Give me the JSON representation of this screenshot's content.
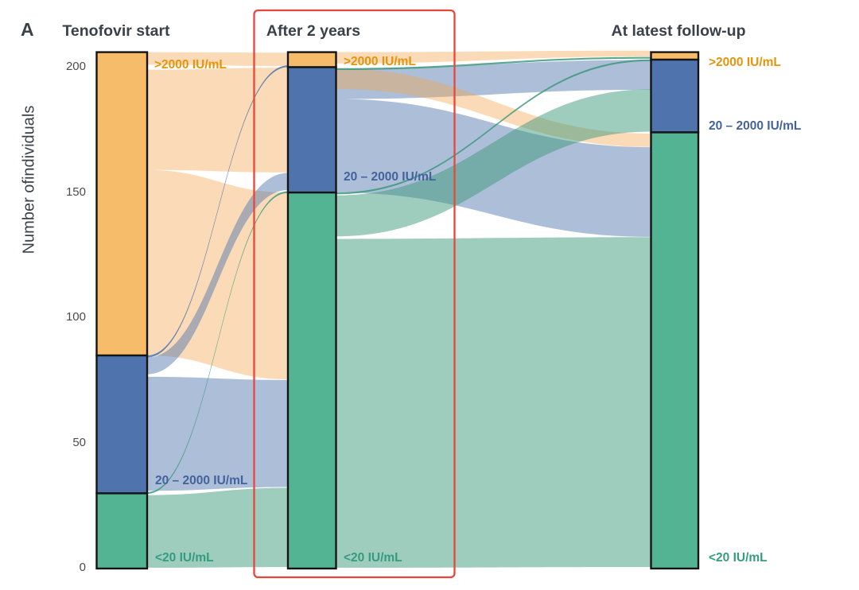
{
  "panel_label": "A",
  "y_axis": {
    "title": "Number ofindividuals",
    "ticks": [
      {
        "label": "200",
        "value": 200
      },
      {
        "label": "150",
        "value": 150
      },
      {
        "label": "100",
        "value": 100
      },
      {
        "label": "50",
        "value": 50
      },
      {
        "label": "0",
        "value": 0
      }
    ]
  },
  "columns": [
    {
      "id": "start",
      "header": "Tenofovir start",
      "labels": {
        "high": ">2000 IU/mL",
        "mid": "20 – 2000 IU/mL",
        "low": "<20 IU/mL"
      }
    },
    {
      "id": "after2y",
      "header": "After 2 years",
      "labels": {
        "high": ">2000 IU/mL",
        "mid": "20 – 2000 IU/mL",
        "low": "<20 IU/mL"
      }
    },
    {
      "id": "latest",
      "header": "At latest follow-up",
      "labels": {
        "high": ">2000 IU/mL",
        "mid": "20 – 2000 IU/mL",
        "low": "<20 IU/mL"
      }
    }
  ],
  "highlight": {
    "column": "After 2 years"
  },
  "colors": {
    "bar_high": "#f7bc69",
    "bar_mid": "#4f74ad",
    "bar_low": "#52b492",
    "ribbon_orange": "#f5a64b",
    "ribbon_blue": "#4f74ad",
    "ribbon_green": "#3d9a7c",
    "label_high": "#e6940c",
    "label_mid": "#44639c",
    "label_low": "#359c7d",
    "heading_text": "#3b4149",
    "tick_text": "#4c4c4c",
    "bar_outline": "#141414",
    "highlight_box": "#e8463c"
  },
  "chart_data": {
    "type": "alluvial",
    "total_individuals": 206,
    "y_axis": {
      "label": "Number ofindividuals",
      "range": [
        0,
        206
      ],
      "ticks": [
        0,
        50,
        100,
        150,
        200
      ]
    },
    "category_order_top_to_bottom": [
      ">2000 IU/mL",
      "20 – 2000 IU/mL",
      "<20 IU/mL"
    ],
    "axes": [
      {
        "label": "Tenofovir start",
        "strata": [
          {
            "name": ">2000 IU/mL",
            "value": 121
          },
          {
            "name": "20 – 2000 IU/mL",
            "value": 55
          },
          {
            "name": "<20 IU/mL",
            "value": 30
          }
        ]
      },
      {
        "label": "After 2 years",
        "strata": [
          {
            "name": ">2000 IU/mL",
            "value": 6
          },
          {
            "name": "20 – 2000 IU/mL",
            "value": 50
          },
          {
            "name": "<20 IU/mL",
            "value": 150
          }
        ]
      },
      {
        "label": "At latest follow-up",
        "strata": [
          {
            "name": ">2000 IU/mL",
            "value": 3
          },
          {
            "name": "20 – 2000 IU/mL",
            "value": 29
          },
          {
            "name": "<20 IU/mL",
            "value": 174
          }
        ]
      }
    ],
    "flows": [
      {
        "gap": 0,
        "from": ">2000 IU/mL",
        "to": ">2000 IU/mL",
        "value": 5,
        "src": [
          201,
          206
        ],
        "tgt": [
          200.4,
          205.8
        ],
        "color": "orange",
        "kind": "band"
      },
      {
        "gap": 0,
        "from": ">2000 IU/mL",
        "to": "20 – 2000 IU/mL",
        "value": 40,
        "src": [
          159,
          199
        ],
        "tgt": [
          158,
          199.8
        ],
        "color": "orange",
        "kind": "band"
      },
      {
        "gap": 0,
        "from": ">2000 IU/mL",
        "to": "<20 IU/mL",
        "value": 74,
        "src": [
          85,
          159
        ],
        "tgt": [
          75.5,
          150
        ],
        "color": "orange",
        "kind": "band"
      },
      {
        "gap": 0,
        "from": "20 – 2000 IU/mL",
        "to": "<20 IU/mL",
        "value": 45,
        "src": [
          31,
          76.5
        ],
        "tgt": [
          32.5,
          75.2
        ],
        "color": "blue",
        "kind": "band"
      },
      {
        "gap": 0,
        "from": "20 – 2000 IU/mL",
        "to": "20 – 2000 IU/mL",
        "value": 6,
        "src": [
          77.5,
          84.2
        ],
        "tgt": [
          151,
          157.8
        ],
        "color": "blue",
        "kind": "band"
      },
      {
        "gap": 0,
        "from": "20 – 2000 IU/mL",
        "to": ">2000 IU/mL",
        "value": 1,
        "src": [
          84.2,
          85
        ],
        "tgt": [
          200,
          200.7
        ],
        "color": "blue",
        "kind": "line"
      },
      {
        "gap": 0,
        "from": "<20 IU/mL",
        "to": "<20 IU/mL",
        "value": 29,
        "src": [
          0.3,
          29.3
        ],
        "tgt": [
          0.6,
          32.2
        ],
        "color": "green",
        "kind": "band"
      },
      {
        "gap": 0,
        "from": "<20 IU/mL",
        "to": "20 – 2000 IU/mL",
        "value": 1,
        "src": [
          29.8,
          30.5
        ],
        "tgt": [
          149.8,
          150.5
        ],
        "color": "green",
        "kind": "line"
      },
      {
        "gap": 1,
        "from": "20 – 2000 IU/mL",
        "to": "20 – 2000 IU/mL",
        "value": 12,
        "src": [
          187.3,
          199.5
        ],
        "tgt": [
          191,
          202.9
        ],
        "color": "blue",
        "kind": "band"
      },
      {
        "gap": 1,
        "from": "20 – 2000 IU/mL",
        "to": "<20 IU/mL",
        "value": 35,
        "src": [
          150,
          187.3
        ],
        "tgt": [
          132.3,
          168.1
        ],
        "color": "blue",
        "kind": "band"
      },
      {
        "gap": 1,
        "from": ">2000 IU/mL",
        "to": ">2000 IU/mL",
        "value": 4,
        "src": [
          201.5,
          206
        ],
        "tgt": [
          204.3,
          206.6
        ],
        "color": "orange",
        "kind": "band"
      },
      {
        "gap": 1,
        "from": "20 – 2000 IU/mL",
        "to": "<20 IU/mL",
        "value": 8,
        "src": [
          191.3,
          199.4
        ],
        "tgt": [
          168.2,
          173.5
        ],
        "color": "orange",
        "kind": "band"
      },
      {
        "gap": 1,
        "from": "<20 IU/mL",
        "to": "<20 IU/mL",
        "value": 131,
        "src": [
          0.3,
          131.5
        ],
        "tgt": [
          0.6,
          132.2
        ],
        "color": "green",
        "kind": "band"
      },
      {
        "gap": 1,
        "from": "<20 IU/mL",
        "to": "20 – 2000 IU/mL",
        "value": 17,
        "src": [
          132.5,
          148.9
        ],
        "tgt": [
          174.3,
          191.2
        ],
        "color": "green",
        "kind": "band"
      },
      {
        "gap": 1,
        "from": "<20 IU/mL",
        "to": ">2000 IU/mL",
        "value": 1,
        "src": [
          149.3,
          150
        ],
        "tgt": [
          202.4,
          203.1
        ],
        "color": "green",
        "kind": "line"
      },
      {
        "gap": 1,
        "from": "20 – 2000 IU/mL",
        "to": ">2000 IU/mL",
        "value": 1,
        "src": [
          198.9,
          199.6
        ],
        "tgt": [
          203.4,
          204.1
        ],
        "color": "green",
        "kind": "line"
      }
    ]
  }
}
